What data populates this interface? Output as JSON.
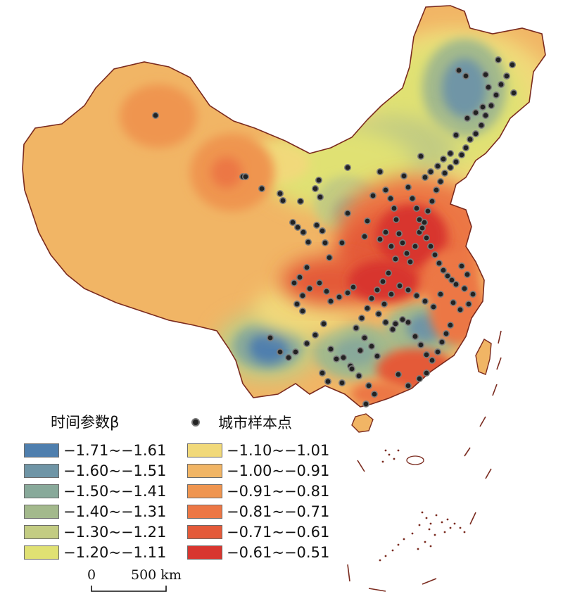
{
  "legend": {
    "title": "时间参数β",
    "cities_label": "城市样本点",
    "items": [
      {
        "label": "−1.71~−1.61",
        "color": "#4f7fae"
      },
      {
        "label": "−1.60~−1.51",
        "color": "#6f95a6"
      },
      {
        "label": "−1.50~−1.41",
        "color": "#88a99a"
      },
      {
        "label": "−1.40~−1.31",
        "color": "#a3b98c"
      },
      {
        "label": "−1.30~−1.21",
        "color": "#c3cc82"
      },
      {
        "label": "−1.20~−1.11",
        "color": "#e0e173"
      },
      {
        "label": "−1.10~−1.01",
        "color": "#f1d97a"
      },
      {
        "label": "−1.00~−0.91",
        "color": "#f1b565"
      },
      {
        "label": "−0.91~−0.81",
        "color": "#ef9550"
      },
      {
        "label": "−0.81~−0.71",
        "color": "#ec7745"
      },
      {
        "label": "−0.71~−0.61",
        "color": "#e45a39"
      },
      {
        "label": "−0.61~−0.51",
        "color": "#d8362f"
      }
    ]
  },
  "scale_bar": {
    "zero": "0",
    "distance": "500 km"
  },
  "colors": {
    "border": "#7a2a1e",
    "dot": "#222222"
  }
}
